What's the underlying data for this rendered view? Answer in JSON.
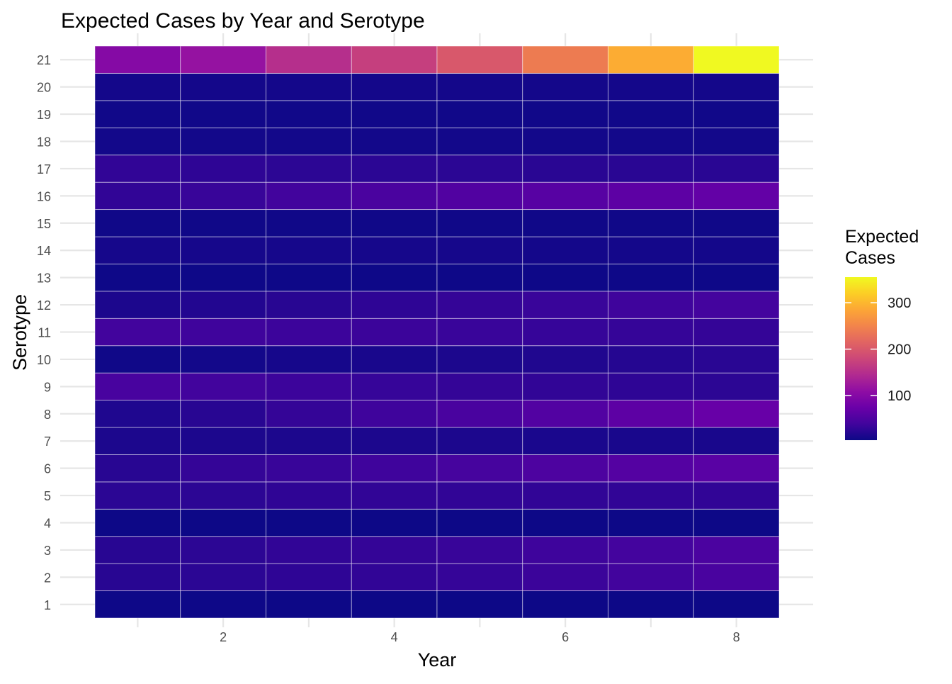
{
  "chart_data": {
    "type": "heatmap",
    "title": "Expected Cases by Year and Serotype",
    "xlabel": "Year",
    "ylabel": "Serotype",
    "x": [
      1,
      2,
      3,
      4,
      5,
      6,
      7,
      8
    ],
    "x_ticks": [
      2,
      4,
      6,
      8
    ],
    "xlim": [
      0.5,
      8.5
    ],
    "y": [
      1,
      2,
      3,
      4,
      5,
      6,
      7,
      8,
      9,
      10,
      11,
      12,
      13,
      14,
      15,
      16,
      17,
      18,
      19,
      20,
      21
    ],
    "y_ticks": [
      1,
      2,
      3,
      4,
      5,
      6,
      7,
      8,
      9,
      10,
      11,
      12,
      13,
      14,
      15,
      16,
      17,
      18,
      19,
      20,
      21
    ],
    "values": [
      [
        5,
        5,
        4,
        4,
        4,
        4,
        4,
        4
      ],
      [
        22,
        24,
        26,
        28,
        31,
        35,
        40,
        46
      ],
      [
        22,
        25,
        28,
        30,
        33,
        37,
        42,
        48
      ],
      [
        4,
        4,
        4,
        4,
        4,
        4,
        4,
        4
      ],
      [
        24,
        25,
        27,
        28,
        28,
        28,
        28,
        28
      ],
      [
        22,
        30,
        33,
        38,
        43,
        49,
        55,
        60
      ],
      [
        14,
        14,
        14,
        14,
        14,
        13,
        12,
        12
      ],
      [
        16,
        22,
        30,
        38,
        46,
        54,
        63,
        72
      ],
      [
        45,
        40,
        36,
        32,
        30,
        28,
        26,
        25
      ],
      [
        6,
        8,
        10,
        12,
        14,
        17,
        20,
        23
      ],
      [
        40,
        38,
        36,
        35,
        34,
        32,
        31,
        30
      ],
      [
        14,
        18,
        22,
        26,
        30,
        34,
        38,
        42
      ],
      [
        5,
        5,
        5,
        5,
        5,
        5,
        5,
        5
      ],
      [
        10,
        10,
        10,
        10,
        10,
        9,
        9,
        9
      ],
      [
        6,
        6,
        6,
        6,
        6,
        6,
        6,
        6
      ],
      [
        28,
        33,
        40,
        47,
        53,
        58,
        63,
        68
      ],
      [
        28,
        26,
        25,
        24,
        24,
        23,
        23,
        23
      ],
      [
        8,
        8,
        8,
        8,
        8,
        8,
        8,
        8
      ],
      [
        7,
        7,
        7,
        7,
        7,
        7,
        7,
        7
      ],
      [
        9,
        9,
        9,
        9,
        9,
        9,
        9,
        9
      ],
      [
        100,
        115,
        150,
        170,
        200,
        240,
        290,
        355
      ]
    ],
    "legend": {
      "title": "Expected Cases",
      "position": "right",
      "ticks": [
        100,
        200,
        300
      ],
      "range": [
        4,
        355
      ]
    },
    "colormap": "plasma",
    "grid": true
  }
}
